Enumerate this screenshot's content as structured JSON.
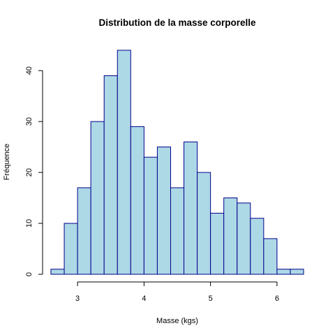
{
  "chart_data": {
    "type": "bar",
    "title": "Distribution de la masse corporelle",
    "xlabel": "Masse (kgs)",
    "ylabel": "Fréquence",
    "bins": [
      {
        "start": 2.6,
        "end": 2.8,
        "count": 1
      },
      {
        "start": 2.8,
        "end": 3.0,
        "count": 10
      },
      {
        "start": 3.0,
        "end": 3.2,
        "count": 17
      },
      {
        "start": 3.2,
        "end": 3.4,
        "count": 30
      },
      {
        "start": 3.4,
        "end": 3.6,
        "count": 39
      },
      {
        "start": 3.6,
        "end": 3.8,
        "count": 44
      },
      {
        "start": 3.8,
        "end": 4.0,
        "count": 29
      },
      {
        "start": 4.0,
        "end": 4.2,
        "count": 23
      },
      {
        "start": 4.2,
        "end": 4.4,
        "count": 25
      },
      {
        "start": 4.4,
        "end": 4.6,
        "count": 17
      },
      {
        "start": 4.6,
        "end": 4.8,
        "count": 26
      },
      {
        "start": 4.8,
        "end": 5.0,
        "count": 20
      },
      {
        "start": 5.0,
        "end": 5.2,
        "count": 12
      },
      {
        "start": 5.2,
        "end": 5.4,
        "count": 15
      },
      {
        "start": 5.4,
        "end": 5.6,
        "count": 14
      },
      {
        "start": 5.6,
        "end": 5.8,
        "count": 11
      },
      {
        "start": 5.8,
        "end": 6.0,
        "count": 7
      },
      {
        "start": 6.0,
        "end": 6.2,
        "count": 1
      },
      {
        "start": 6.2,
        "end": 6.4,
        "count": 1
      }
    ],
    "xlim": [
      2.6,
      6.4
    ],
    "ylim": [
      0,
      44
    ],
    "xticks": [
      3,
      4,
      5,
      6
    ],
    "yticks": [
      0,
      10,
      20,
      30,
      40
    ],
    "grid": false,
    "legend": "none",
    "colors": {
      "bar_fill": "#add8e6",
      "bar_border": "#00008b"
    }
  }
}
